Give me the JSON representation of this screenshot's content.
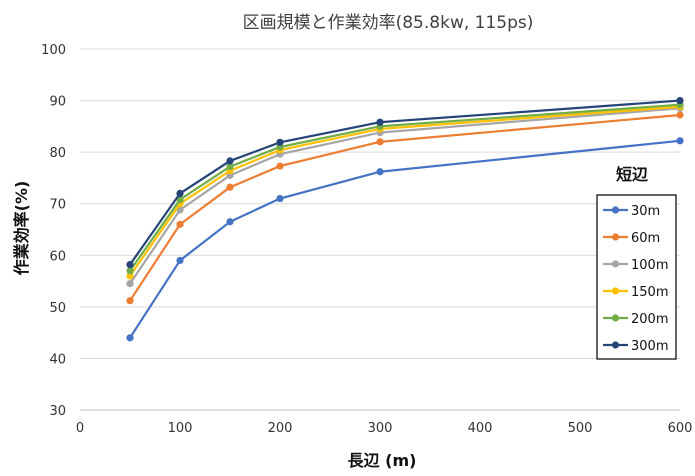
{
  "chart_data": {
    "type": "line",
    "title": "区画規模と作業効率(85.8kw, 115ps)",
    "xlabel": "長辺 (m)",
    "ylabel": "作業効率(%)",
    "xlim": [
      0,
      600
    ],
    "ylim": [
      30,
      100
    ],
    "xticks": [
      0,
      100,
      200,
      300,
      400,
      500,
      600
    ],
    "yticks": [
      30,
      40,
      50,
      60,
      70,
      80,
      90,
      100
    ],
    "grid": "horizontal",
    "legend": {
      "title": "短辺",
      "position": "right"
    },
    "x": [
      50,
      100,
      150,
      200,
      300,
      600
    ],
    "series": [
      {
        "name": "30m",
        "color": "#4472C4",
        "values": [
          44.0,
          59.0,
          66.5,
          71.0,
          76.2,
          82.2
        ]
      },
      {
        "name": "60m",
        "color": "#ED7D31",
        "values": [
          51.2,
          66.0,
          73.2,
          77.3,
          82.0,
          87.2
        ]
      },
      {
        "name": "100m",
        "color": "#A5A5A5",
        "values": [
          54.5,
          68.8,
          75.5,
          79.6,
          83.8,
          88.5
        ]
      },
      {
        "name": "150m",
        "color": "#FFC000",
        "values": [
          56.0,
          70.0,
          76.4,
          80.4,
          84.5,
          88.8
        ]
      },
      {
        "name": "200m",
        "color": "#70AD47",
        "values": [
          57.0,
          70.8,
          77.2,
          81.0,
          85.0,
          89.2
        ]
      },
      {
        "name": "300m",
        "color": "#264478",
        "values": [
          58.2,
          72.0,
          78.3,
          81.9,
          85.8,
          90.0
        ]
      }
    ]
  }
}
